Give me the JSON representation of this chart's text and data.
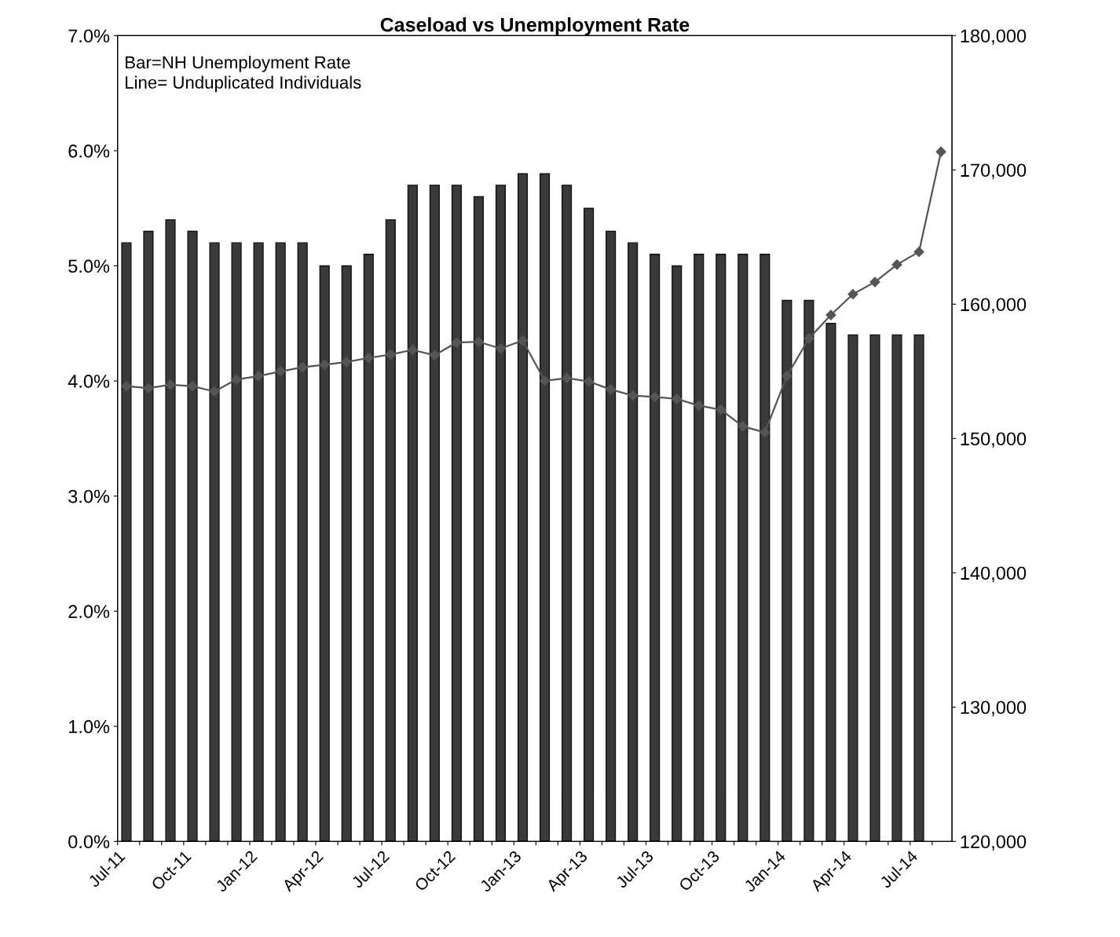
{
  "chart_data": {
    "type": "bar",
    "title": "Caseload vs Unemployment Rate",
    "categories": [
      "Jul-11",
      null,
      null,
      "Oct-11",
      null,
      null,
      "Jan-12",
      null,
      null,
      "Apr-12",
      null,
      null,
      "Jul-12",
      null,
      null,
      "Oct-12",
      null,
      null,
      "Jan-13",
      null,
      null,
      "Apr-13",
      null,
      null,
      "Jul-13",
      null,
      null,
      "Oct-13",
      null,
      null,
      "Jan-14",
      null,
      null,
      "Apr-14",
      null,
      null,
      "Jul-14",
      null
    ],
    "series": [
      {
        "color": "#3a3a3a",
        "values": [
          5.2,
          5.3,
          5.4,
          5.3,
          5.2,
          5.2,
          5.2,
          5.2,
          5.2,
          5.0,
          5.0,
          5.1,
          5.4,
          5.7,
          5.7,
          5.7,
          5.6,
          5.7,
          5.8,
          5.8,
          5.7,
          5.5,
          5.3,
          5.2,
          5.1,
          5.0,
          5.1,
          5.1,
          5.1,
          5.1,
          4.7,
          4.7,
          4.5,
          4.4,
          4.4,
          4.4,
          4.4,
          null
        ]
      },
      {
        "type": "line",
        "axis": "y2",
        "color": "#555555",
        "marker": "diamond",
        "values": [
          153900,
          153750,
          154000,
          153900,
          153500,
          154400,
          154650,
          155000,
          155300,
          155500,
          155700,
          156000,
          156250,
          156600,
          156200,
          157150,
          157200,
          156700,
          157300,
          154300,
          154500,
          154250,
          153650,
          153200,
          153100,
          152950,
          152450,
          152150,
          150900,
          150450,
          154650,
          157450,
          159200,
          160750,
          161650,
          162950,
          163900,
          171350
        ]
      }
    ],
    "ylim": [
      0,
      7
    ],
    "yticks": [
      {
        "value": 0,
        "label": "0.0%"
      },
      {
        "value": 1,
        "label": "1.0%"
      },
      {
        "value": 2,
        "label": "2.0%"
      },
      {
        "value": 3,
        "label": "3.0%"
      },
      {
        "value": 4,
        "label": "4.0%"
      },
      {
        "value": 5,
        "label": "5.0%"
      },
      {
        "value": 6,
        "label": "6.0%"
      },
      {
        "value": 7,
        "label": "7.0%"
      }
    ],
    "y2lim": [
      120000,
      180000
    ],
    "y2ticks": [
      {
        "value": 120000,
        "label": "120,000"
      },
      {
        "value": 130000,
        "label": "130,000"
      },
      {
        "value": 140000,
        "label": "140,000"
      },
      {
        "value": 150000,
        "label": "150,000"
      },
      {
        "value": 160000,
        "label": "160,000"
      },
      {
        "value": 170000,
        "label": "170,000"
      },
      {
        "value": 180000,
        "label": "180,000"
      }
    ],
    "annotations": [
      "Bar=NH Unemployment Rate\nLine= Unduplicated Individuals"
    ],
    "grid": false,
    "legend": false
  }
}
